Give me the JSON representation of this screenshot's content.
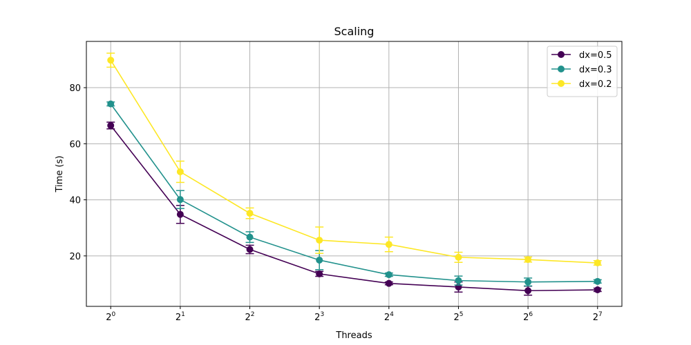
{
  "chart_data": {
    "type": "line",
    "title": "Scaling",
    "xlabel": "Threads",
    "ylabel": "Time (s)",
    "x_scale": "log2",
    "x": [
      1,
      2,
      4,
      8,
      16,
      32,
      64,
      128
    ],
    "x_tick_labels": [
      {
        "base": "2",
        "exp": "0"
      },
      {
        "base": "2",
        "exp": "1"
      },
      {
        "base": "2",
        "exp": "2"
      },
      {
        "base": "2",
        "exp": "3"
      },
      {
        "base": "2",
        "exp": "4"
      },
      {
        "base": "2",
        "exp": "5"
      },
      {
        "base": "2",
        "exp": "6"
      },
      {
        "base": "2",
        "exp": "7"
      }
    ],
    "y_ticks": [
      20,
      40,
      60,
      80
    ],
    "ylim": [
      2,
      96.5
    ],
    "grid": true,
    "legend_position": "top-right",
    "series": [
      {
        "name": "dx=0.5",
        "color": "#440154",
        "values": [
          66.5,
          34.8,
          22.3,
          13.6,
          10.2,
          8.9,
          7.6,
          7.9
        ],
        "errors": [
          1.2,
          3.2,
          1.5,
          0.9,
          0.5,
          1.8,
          1.6,
          0.6
        ]
      },
      {
        "name": "dx=0.3",
        "color": "#21918c",
        "values": [
          74.2,
          40.1,
          26.7,
          18.5,
          13.3,
          11.2,
          10.7,
          10.9
        ],
        "errors": [
          0.7,
          3.2,
          1.9,
          3.4,
          0.6,
          1.6,
          1.4,
          0.6
        ]
      },
      {
        "name": "dx=0.2",
        "color": "#fde725",
        "values": [
          89.8,
          50.0,
          35.2,
          25.6,
          24.1,
          19.5,
          18.7,
          17.5
        ],
        "errors": [
          2.5,
          3.8,
          1.9,
          4.7,
          2.6,
          1.8,
          0.9,
          0.8
        ]
      }
    ]
  }
}
